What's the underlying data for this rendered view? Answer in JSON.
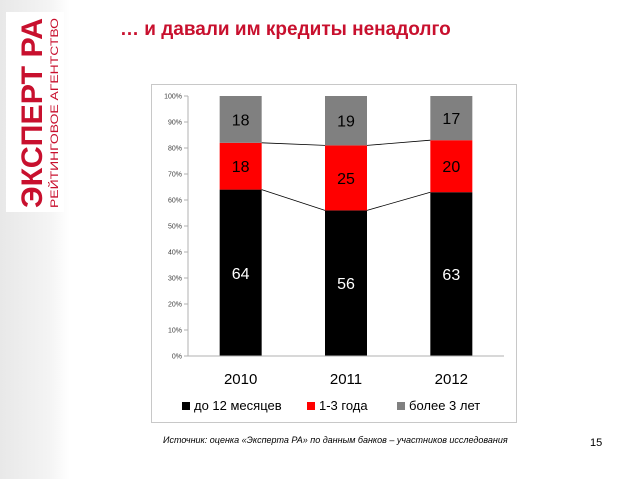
{
  "slide": {
    "title": "… и давали им кредиты ненадолго",
    "source": "Источник: оценка «Эксперта РА» по данным банков – участников исследования",
    "page_number": "15"
  },
  "logo": {
    "line1": "ЭКСПЕРТ РА",
    "line2": "РЕЙТИНГОВОЕ АГЕНТСТВО"
  },
  "chart_data": {
    "type": "bar",
    "stacked": true,
    "categories": [
      "2010",
      "2011",
      "2012"
    ],
    "series": [
      {
        "name": "до 12 месяцев",
        "values": [
          64,
          56,
          63
        ],
        "color": "#000000",
        "label_color": "#ffffff"
      },
      {
        "name": "1-3 года",
        "values": [
          18,
          25,
          20
        ],
        "color": "#ff0000",
        "label_color": "#000000"
      },
      {
        "name": "более 3 лет",
        "values": [
          18,
          19,
          17
        ],
        "color": "#808080",
        "label_color": "#000000"
      }
    ],
    "ylim": [
      0,
      100
    ],
    "yticks": [
      "0%",
      "10%",
      "20%",
      "30%",
      "40%",
      "50%",
      "60%",
      "70%",
      "80%",
      "90%",
      "100%"
    ],
    "grid": false,
    "series_lines": true,
    "legend_position": "bottom"
  }
}
